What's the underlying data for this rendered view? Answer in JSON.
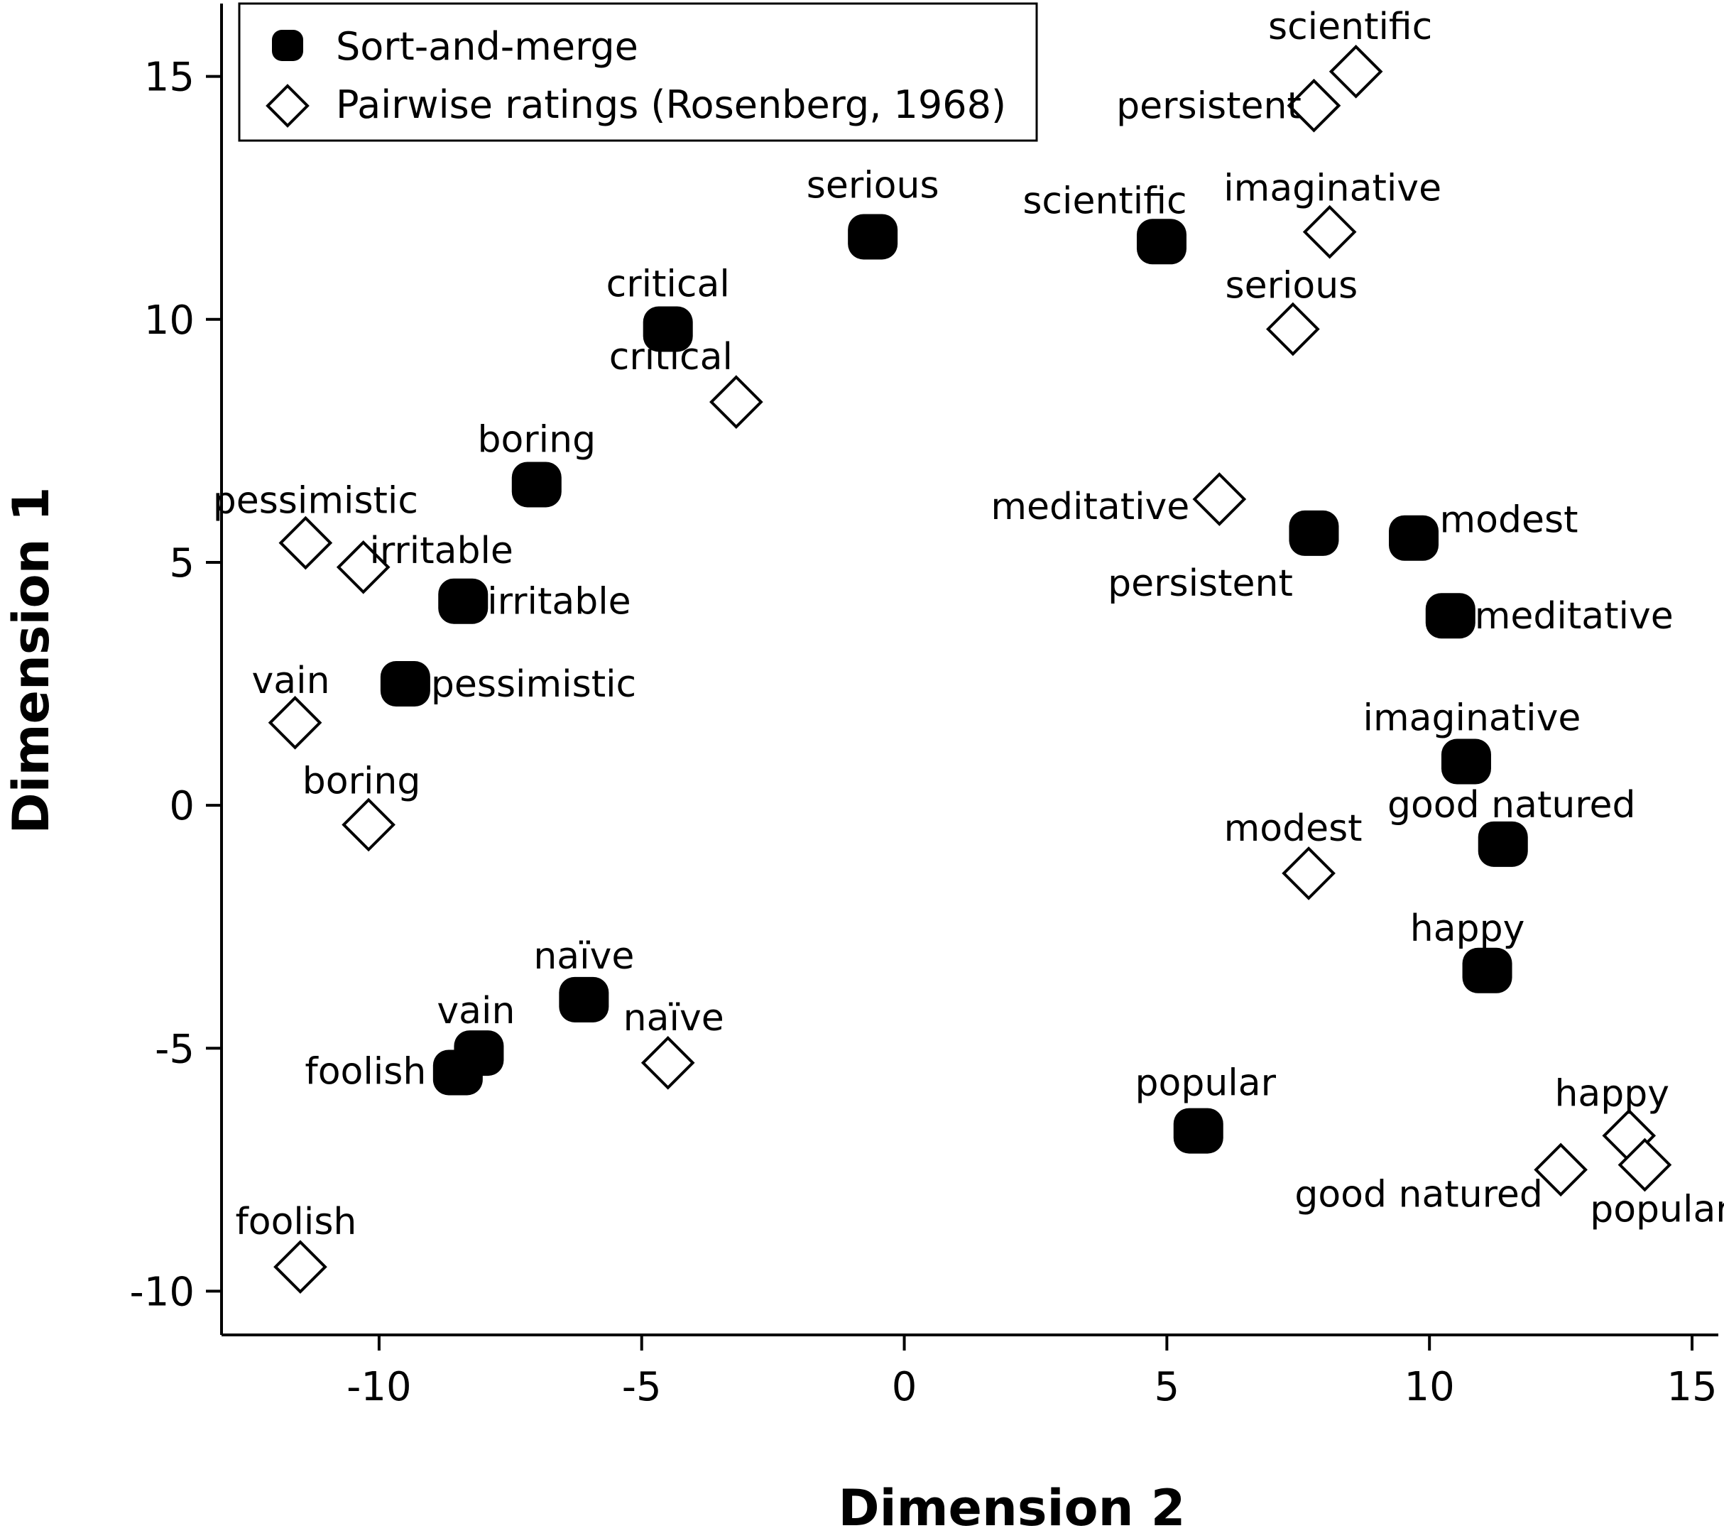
{
  "chart_data": {
    "type": "scatter",
    "xlabel": "Dimension 2",
    "ylabel": "Dimension 1",
    "xlim": [
      -13,
      15.5
    ],
    "ylim": [
      -10.9,
      16.5
    ],
    "xticks": [
      -10,
      -5,
      0,
      5,
      10,
      15
    ],
    "yticks": [
      -10,
      -5,
      0,
      5,
      10,
      15
    ],
    "legend_position": "top-left",
    "series": [
      {
        "name": "Sort-and-merge",
        "marker": "filled-rounded-square",
        "color": "#000000",
        "points": [
          {
            "label": "serious",
            "x": -0.6,
            "y": 11.7
          },
          {
            "label": "scientific",
            "x": 4.9,
            "y": 11.6
          },
          {
            "label": "critical",
            "x": -4.5,
            "y": 9.8
          },
          {
            "label": "boring",
            "x": -7.0,
            "y": 6.6
          },
          {
            "label": "irritable",
            "x": -8.4,
            "y": 4.2
          },
          {
            "label": "pessimistic",
            "x": -9.5,
            "y": 2.5
          },
          {
            "label": "persistent",
            "x": 7.8,
            "y": 5.6
          },
          {
            "label": "modest",
            "x": 9.7,
            "y": 5.5
          },
          {
            "label": "meditative",
            "x": 10.4,
            "y": 3.9
          },
          {
            "label": "imaginative",
            "x": 10.7,
            "y": 0.9
          },
          {
            "label": "good natured",
            "x": 11.4,
            "y": -0.8
          },
          {
            "label": "happy",
            "x": 11.1,
            "y": -3.4
          },
          {
            "label": "naïve",
            "x": -6.1,
            "y": -4.0
          },
          {
            "label": "vain",
            "x": -8.1,
            "y": -5.1
          },
          {
            "label": "foolish",
            "x": -8.5,
            "y": -5.5
          },
          {
            "label": "popular",
            "x": 5.6,
            "y": -6.7
          }
        ]
      },
      {
        "name": "Pairwise ratings (Rosenberg, 1968)",
        "marker": "open-diamond",
        "color": "#000000",
        "points": [
          {
            "label": "scientific",
            "x": 8.6,
            "y": 15.1
          },
          {
            "label": "persistent",
            "x": 7.8,
            "y": 14.4
          },
          {
            "label": "imaginative",
            "x": 8.1,
            "y": 11.8
          },
          {
            "label": "serious",
            "x": 7.4,
            "y": 9.8
          },
          {
            "label": "critical",
            "x": -3.2,
            "y": 8.3
          },
          {
            "label": "meditative",
            "x": 6.0,
            "y": 6.3
          },
          {
            "label": "pessimistic",
            "x": -11.4,
            "y": 5.4
          },
          {
            "label": "irritable",
            "x": -10.3,
            "y": 4.9
          },
          {
            "label": "vain",
            "x": -11.6,
            "y": 1.7
          },
          {
            "label": "boring",
            "x": -10.2,
            "y": -0.4
          },
          {
            "label": "modest",
            "x": 7.7,
            "y": -1.4
          },
          {
            "label": "naïve",
            "x": -4.5,
            "y": -5.3
          },
          {
            "label": "happy",
            "x": 13.8,
            "y": -6.8
          },
          {
            "label": "good natured",
            "x": 12.5,
            "y": -7.5
          },
          {
            "label": "popular",
            "x": 14.1,
            "y": -7.4
          },
          {
            "label": "foolish",
            "x": -11.5,
            "y": -9.5
          }
        ]
      }
    ]
  }
}
